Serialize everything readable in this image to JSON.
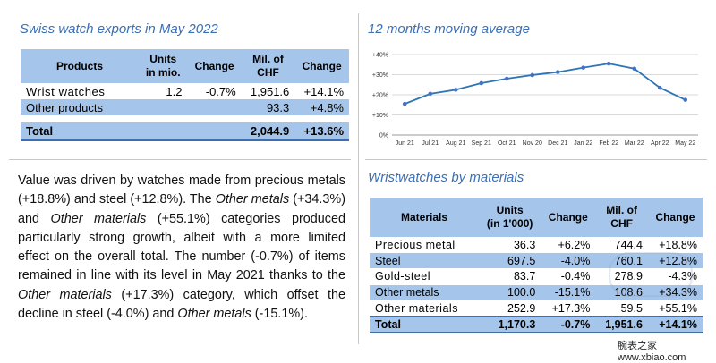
{
  "exports": {
    "title": "Swiss watch exports in May 2022",
    "headers": [
      "Products",
      "Units\nin mio.",
      "Change",
      "Mil. of\nCHF",
      "Change"
    ],
    "rows": [
      {
        "label": "Wrist watches",
        "units": "1.2",
        "units_change": "-0.7%",
        "chf": "1,951.6",
        "chf_change": "+14.1%"
      },
      {
        "label": "Other products",
        "units": "",
        "units_change": "",
        "chf": "93.3",
        "chf_change": "+4.8%"
      }
    ],
    "total": {
      "label": "Total",
      "units": "",
      "units_change": "",
      "chf": "2,044.9",
      "chf_change": "+13.6%"
    }
  },
  "moving_average": {
    "title": "12 months moving average",
    "chart_data": {
      "type": "line",
      "categories": [
        "Jun 21",
        "Jul 21",
        "Aug 21",
        "Sep 21",
        "Oct 21",
        "Nov 20",
        "Dec 21",
        "Jan 22",
        "Feb 22",
        "Mar 22",
        "Apr 22",
        "May 22"
      ],
      "series": [
        {
          "values": [
            15.5,
            20.5,
            22.5,
            25.8,
            28.0,
            29.8,
            31.3,
            33.5,
            35.5,
            33.0,
            23.5,
            17.5
          ]
        }
      ],
      "ylim": [
        0,
        40
      ],
      "yticks": [
        "0%",
        "+10%",
        "+20%",
        "+30%",
        "+40%"
      ],
      "grid": true,
      "color": "#2e75b6",
      "marker_color": "#4472c4"
    }
  },
  "paragraph": {
    "p1": "Value was driven by watches made from precious metals (+18.8%) and steel (+12.8%). The ",
    "i1": "Other metals",
    "p2": " (+34.3%) and ",
    "i2": "Other materials",
    "p3": " (+55.1%) categories produced particularly strong growth, albeit with a more limited effect on the overall total. The number (-0.7%) of items remained in line with its level in May 2021 thanks to the ",
    "i3": "Other materials",
    "p4": " (+17.3%) category, which offset the decline in steel (-4.0%) and ",
    "i4": "Other metals",
    "p5": " (-15.1%)."
  },
  "materials": {
    "title": "Wristwatches by materials",
    "headers": [
      "Materials",
      "Units\n(in 1'000)",
      "Change",
      "Mil. of\nCHF",
      "Change"
    ],
    "rows": [
      {
        "label": "Precious metal",
        "units": "36.3",
        "units_change": "+6.2%",
        "chf": "744.4",
        "chf_change": "+18.8%"
      },
      {
        "label": "Steel",
        "units": "697.5",
        "units_change": "-4.0%",
        "chf": "760.1",
        "chf_change": "+12.8%"
      },
      {
        "label": "Gold-steel",
        "units": "83.7",
        "units_change": "-0.4%",
        "chf": "278.9",
        "chf_change": "-4.3%"
      },
      {
        "label": "Other metals",
        "units": "100.0",
        "units_change": "-15.1%",
        "chf": "108.6",
        "chf_change": "+34.3%"
      },
      {
        "label": "Other materials",
        "units": "252.9",
        "units_change": "+17.3%",
        "chf": "59.5",
        "chf_change": "+55.1%"
      }
    ],
    "total": {
      "label": "Total",
      "units": "1,170.3",
      "units_change": "-0.7%",
      "chf": "1,951.6",
      "chf_change": "+14.1%"
    }
  },
  "watermark": "腕表之家 www.xbiao.com",
  "colors": {
    "title_blue": "#3b6fb5",
    "header_fill": "#a6c5ea",
    "rule_blue": "#3b6fb5"
  }
}
